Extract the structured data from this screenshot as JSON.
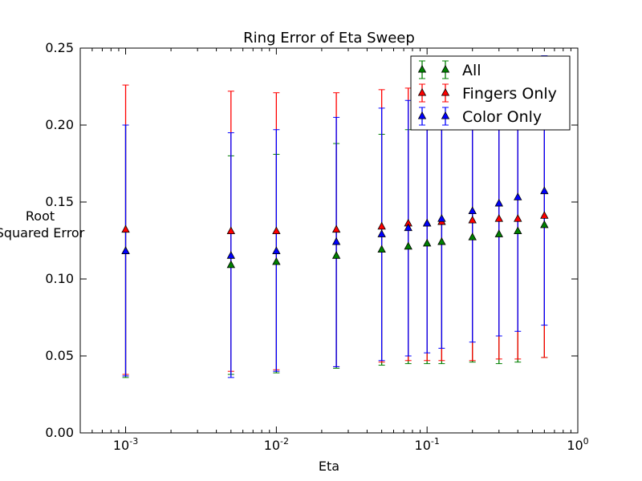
{
  "chart_data": {
    "type": "scatter",
    "title": "Ring Error of Eta Sweep",
    "xlabel": "Eta",
    "ylabel_lines": [
      "Root",
      "Squared Error"
    ],
    "xscale": "log",
    "xlim": [
      0.0005,
      1.0
    ],
    "ylim": [
      0.0,
      0.25
    ],
    "x_ticks": [
      {
        "value": 0.001,
        "base": "10",
        "exp": "-3"
      },
      {
        "value": 0.01,
        "base": "10",
        "exp": "-2"
      },
      {
        "value": 0.1,
        "base": "10",
        "exp": "-1"
      },
      {
        "value": 1.0,
        "base": "10",
        "exp": "0"
      }
    ],
    "y_ticks": [
      0.0,
      0.05,
      0.1,
      0.15,
      0.2,
      0.25
    ],
    "y_tick_labels": [
      "0.00",
      "0.05",
      "0.10",
      "0.15",
      "0.20",
      "0.25"
    ],
    "legend_position": "top-right",
    "x": [
      0.001,
      0.005,
      0.01,
      0.025,
      0.05,
      0.075,
      0.1,
      0.125,
      0.2,
      0.3,
      0.4,
      0.6
    ],
    "series": [
      {
        "name": "All",
        "color": "#008000",
        "values": [
          0.118,
          0.109,
          0.111,
          0.115,
          0.119,
          0.121,
          0.123,
          0.124,
          0.127,
          0.129,
          0.131,
          0.135
        ],
        "lower": [
          0.036,
          0.038,
          0.039,
          0.042,
          0.044,
          0.045,
          0.045,
          0.045,
          0.046,
          0.045,
          0.046,
          0.049
        ],
        "upper": [
          0.2,
          0.18,
          0.181,
          0.188,
          0.194,
          0.197,
          0.2,
          0.203,
          0.208,
          0.213,
          0.216,
          0.221
        ]
      },
      {
        "name": "Fingers Only",
        "color": "#ff0000",
        "values": [
          0.132,
          0.131,
          0.131,
          0.132,
          0.134,
          0.136,
          0.136,
          0.137,
          0.138,
          0.139,
          0.139,
          0.141
        ],
        "lower": [
          0.038,
          0.04,
          0.041,
          0.043,
          0.046,
          0.047,
          0.047,
          0.047,
          0.047,
          0.048,
          0.048,
          0.049
        ],
        "upper": [
          0.226,
          0.222,
          0.221,
          0.221,
          0.223,
          0.224,
          0.225,
          0.226,
          0.228,
          0.23,
          0.23,
          0.232
        ]
      },
      {
        "name": "Color Only",
        "color": "#0000ff",
        "values": [
          0.118,
          0.115,
          0.118,
          0.124,
          0.129,
          0.133,
          0.136,
          0.139,
          0.144,
          0.149,
          0.153,
          0.157
        ],
        "lower": [
          0.037,
          0.036,
          0.04,
          0.043,
          0.047,
          0.05,
          0.052,
          0.055,
          0.059,
          0.063,
          0.066,
          0.07
        ],
        "upper": [
          0.2,
          0.195,
          0.197,
          0.205,
          0.211,
          0.216,
          0.22,
          0.224,
          0.229,
          0.235,
          0.24,
          0.245
        ]
      }
    ]
  }
}
